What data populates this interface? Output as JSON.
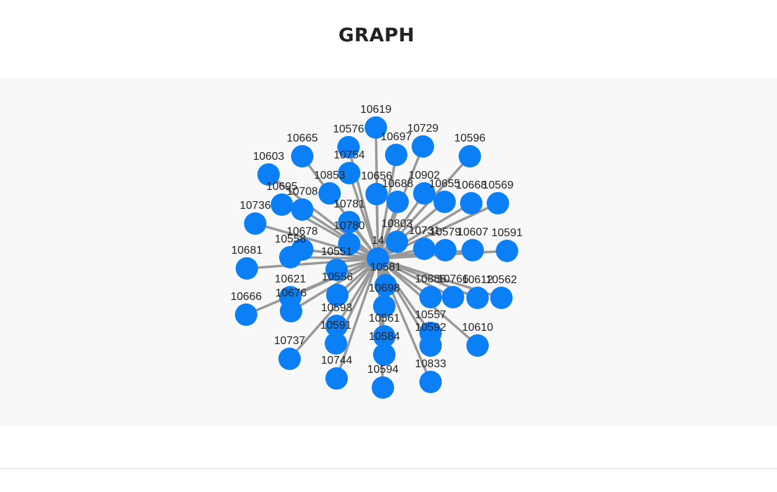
{
  "page": {
    "title": "GRAPH"
  },
  "graph": {
    "node_color": "#0b7ff5",
    "edge_color": "#999999",
    "background": "#f8f8f8",
    "center": "14",
    "nodes": [
      "14",
      "10619",
      "10576",
      "10697",
      "10729",
      "10665",
      "10754",
      "10596",
      "10603",
      "10853",
      "10656",
      "10688",
      "10902",
      "10655",
      "10668",
      "10569",
      "10695",
      "10708",
      "10781",
      "10736",
      "10780",
      "10678",
      "10558",
      "10803",
      "10731",
      "10579",
      "10607",
      "10591",
      "10681",
      "10551",
      "10581",
      "10666",
      "10621",
      "10676",
      "10556",
      "10698",
      "10886",
      "10766",
      "10612",
      "10562",
      "10593",
      "10561",
      "10557",
      "10591b",
      "10592",
      "10610",
      "10737",
      "10584",
      "10744",
      "10594",
      "10833"
    ],
    "labels": {
      "14": "14",
      "10619": "10619",
      "10576": "10576",
      "10697": "10697",
      "10729": "10729",
      "10665": "10665",
      "10754": "10754",
      "10596": "10596",
      "10603": "10603",
      "10853": "10853",
      "10656": "10656",
      "10688": "10688",
      "10902": "10902",
      "10655": "10655",
      "10668": "10668",
      "10569": "10569",
      "10695": "10695",
      "10708": "10708",
      "10781": "10781",
      "10736": "10736",
      "10780": "10780",
      "10678": "10678",
      "10558": "10558",
      "10803": "10803",
      "10731": "10731",
      "10579": "10579",
      "10607": "10607",
      "10591": "10591",
      "10681": "10681",
      "10551": "10551",
      "10581": "10581",
      "10666": "10666",
      "10621": "10621",
      "10676": "10676",
      "10556": "10556",
      "10698": "10698",
      "10886": "10886",
      "10766": "10766",
      "10612": "10612",
      "10562": "10562",
      "10593": "10593",
      "10561": "10561",
      "10557": "10557",
      "10591b": "10591",
      "10592": "10592",
      "10610": "10610",
      "10737": "10737",
      "10584": "10584",
      "10744": "10744",
      "10594": "10594",
      "10833": "10833"
    }
  }
}
